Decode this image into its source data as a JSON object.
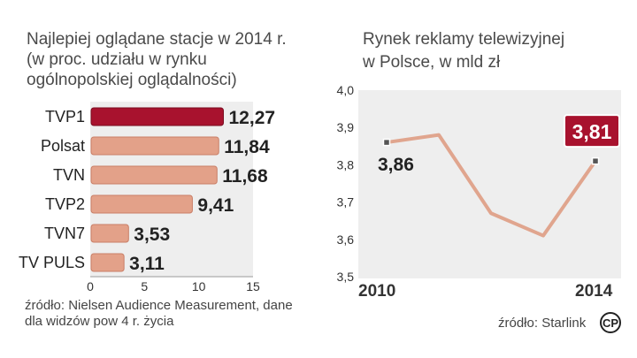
{
  "chart_data": [
    {
      "type": "bar",
      "title_lines": [
        "Najlepiej oglądane stacje w 2014 r.",
        "(w proc. udziału w rynku",
        "ogólnopolskiej oglądalności)"
      ],
      "categories": [
        "TVP1",
        "Polsat",
        "TVN",
        "TVP2",
        "TVN7",
        "TV PULS"
      ],
      "values": [
        12.27,
        11.84,
        11.68,
        9.41,
        3.53,
        3.11
      ],
      "value_labels": [
        "12,27",
        "11,84",
        "11,68",
        "9,41",
        "3,53",
        "3,11"
      ],
      "highlight_index": 0,
      "xlim": [
        0,
        15
      ],
      "xticks": [
        0,
        5,
        10,
        15
      ],
      "colors": {
        "highlight": "#a8122e",
        "bar": "#e3a189",
        "bar_stroke": "#c97e66",
        "plot_bg": "#eeeeee"
      },
      "source_lines": [
        "źródło: Nielsen Audience Measurement, dane",
        "dla widzów pow 4 r. życia"
      ]
    },
    {
      "type": "line",
      "title_lines": [
        "Rynek reklamy telewizyjnej",
        "w Polsce, w mld zł"
      ],
      "x": [
        2010,
        2011,
        2012,
        2013,
        2014
      ],
      "values": [
        3.86,
        3.88,
        3.67,
        3.61,
        3.81
      ],
      "x_tick_labels": [
        "2010",
        "2014"
      ],
      "ylim": [
        3.5,
        4.0
      ],
      "yticks": [
        "3,5",
        "3,6",
        "3,7",
        "3,8",
        "3,9",
        "4,0"
      ],
      "start_label": "3,86",
      "end_label": "3,81",
      "colors": {
        "line": "#e0a58e",
        "highlight": "#a8122e",
        "plot_bg": "#eeeeee"
      },
      "source": "źródło: Starlink",
      "logo_text": "CP"
    }
  ]
}
